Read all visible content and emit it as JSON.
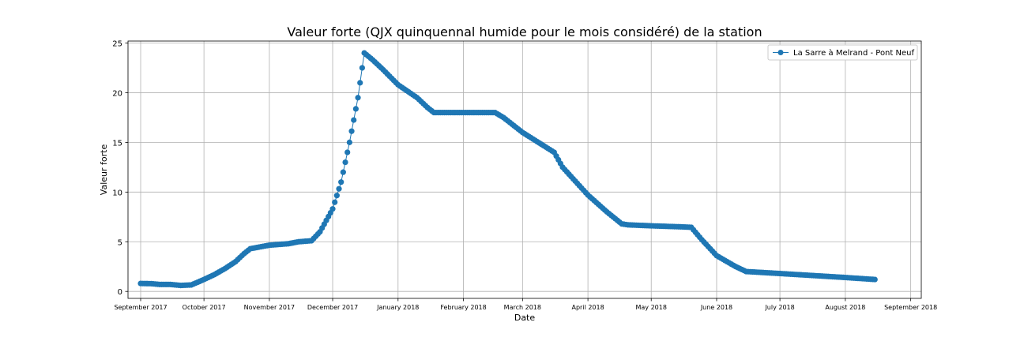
{
  "chart_data": {
    "type": "line",
    "title": "Valeur forte (QJX quinquennal humide pour le mois considéré) de la station",
    "xlabel": "Date",
    "ylabel": "Valeur forte",
    "xlim": [
      "2017-08-26",
      "2018-09-06"
    ],
    "ylim": [
      -0.7,
      25.2
    ],
    "x_ticks": [
      {
        "date": "2017-09-01",
        "label": "September 2017"
      },
      {
        "date": "2017-10-01",
        "label": "October 2017"
      },
      {
        "date": "2017-11-01",
        "label": "November 2017"
      },
      {
        "date": "2017-12-01",
        "label": "December 2017"
      },
      {
        "date": "2018-01-01",
        "label": "January 2018"
      },
      {
        "date": "2018-02-01",
        "label": "February 2018"
      },
      {
        "date": "2018-03-01",
        "label": "March 2018"
      },
      {
        "date": "2018-04-01",
        "label": "April 2018"
      },
      {
        "date": "2018-05-01",
        "label": "May 2018"
      },
      {
        "date": "2018-06-01",
        "label": "June 2018"
      },
      {
        "date": "2018-07-01",
        "label": "July 2018"
      },
      {
        "date": "2018-08-01",
        "label": "August 2018"
      },
      {
        "date": "2018-09-01",
        "label": "September 2018"
      }
    ],
    "y_ticks": [
      0,
      5,
      10,
      15,
      20,
      25
    ],
    "grid": true,
    "legend_position": "top-right",
    "colors": {
      "series": "#1f77b4",
      "grid": "#b0b0b0",
      "axis": "#000000"
    },
    "series": [
      {
        "name": "La Sarre à Melrand - Pont Neuf",
        "marker": "circle",
        "keypoints": [
          {
            "date": "2017-09-01",
            "value": 0.8
          },
          {
            "date": "2017-09-06",
            "value": 0.78
          },
          {
            "date": "2017-09-10",
            "value": 0.7
          },
          {
            "date": "2017-09-15",
            "value": 0.7
          },
          {
            "date": "2017-09-20",
            "value": 0.6
          },
          {
            "date": "2017-09-25",
            "value": 0.65
          },
          {
            "date": "2017-10-01",
            "value": 1.2
          },
          {
            "date": "2017-10-06",
            "value": 1.7
          },
          {
            "date": "2017-10-11",
            "value": 2.3
          },
          {
            "date": "2017-10-16",
            "value": 3.0
          },
          {
            "date": "2017-10-20",
            "value": 3.8
          },
          {
            "date": "2017-10-23",
            "value": 4.3
          },
          {
            "date": "2017-11-01",
            "value": 4.65
          },
          {
            "date": "2017-11-10",
            "value": 4.8
          },
          {
            "date": "2017-11-15",
            "value": 5.0
          },
          {
            "date": "2017-11-21",
            "value": 5.1
          },
          {
            "date": "2017-11-25",
            "value": 6.0
          },
          {
            "date": "2017-12-01",
            "value": 8.3
          },
          {
            "date": "2017-12-05",
            "value": 11.0
          },
          {
            "date": "2017-12-09",
            "value": 15.0
          },
          {
            "date": "2017-12-13",
            "value": 19.5
          },
          {
            "date": "2017-12-15",
            "value": 22.5
          },
          {
            "date": "2017-12-16",
            "value": 24.0
          },
          {
            "date": "2017-12-20",
            "value": 23.3
          },
          {
            "date": "2017-12-25",
            "value": 22.3
          },
          {
            "date": "2018-01-01",
            "value": 20.8
          },
          {
            "date": "2018-01-10",
            "value": 19.5
          },
          {
            "date": "2018-01-15",
            "value": 18.5
          },
          {
            "date": "2018-01-18",
            "value": 18.0
          },
          {
            "date": "2018-02-16",
            "value": 18.0
          },
          {
            "date": "2018-02-20",
            "value": 17.5
          },
          {
            "date": "2018-03-01",
            "value": 16.0
          },
          {
            "date": "2018-03-10",
            "value": 14.8
          },
          {
            "date": "2018-03-16",
            "value": 14.0
          },
          {
            "date": "2018-03-20",
            "value": 12.5
          },
          {
            "date": "2018-04-01",
            "value": 9.7
          },
          {
            "date": "2018-04-10",
            "value": 8.0
          },
          {
            "date": "2018-04-17",
            "value": 6.8
          },
          {
            "date": "2018-04-20",
            "value": 6.7
          },
          {
            "date": "2018-05-01",
            "value": 6.6
          },
          {
            "date": "2018-05-15",
            "value": 6.5
          },
          {
            "date": "2018-05-20",
            "value": 6.45
          },
          {
            "date": "2018-05-25",
            "value": 5.2
          },
          {
            "date": "2018-06-01",
            "value": 3.6
          },
          {
            "date": "2018-06-10",
            "value": 2.5
          },
          {
            "date": "2018-06-15",
            "value": 2.0
          },
          {
            "date": "2018-07-01",
            "value": 1.8
          },
          {
            "date": "2018-08-01",
            "value": 1.4
          },
          {
            "date": "2018-08-15",
            "value": 1.2
          }
        ]
      }
    ]
  }
}
